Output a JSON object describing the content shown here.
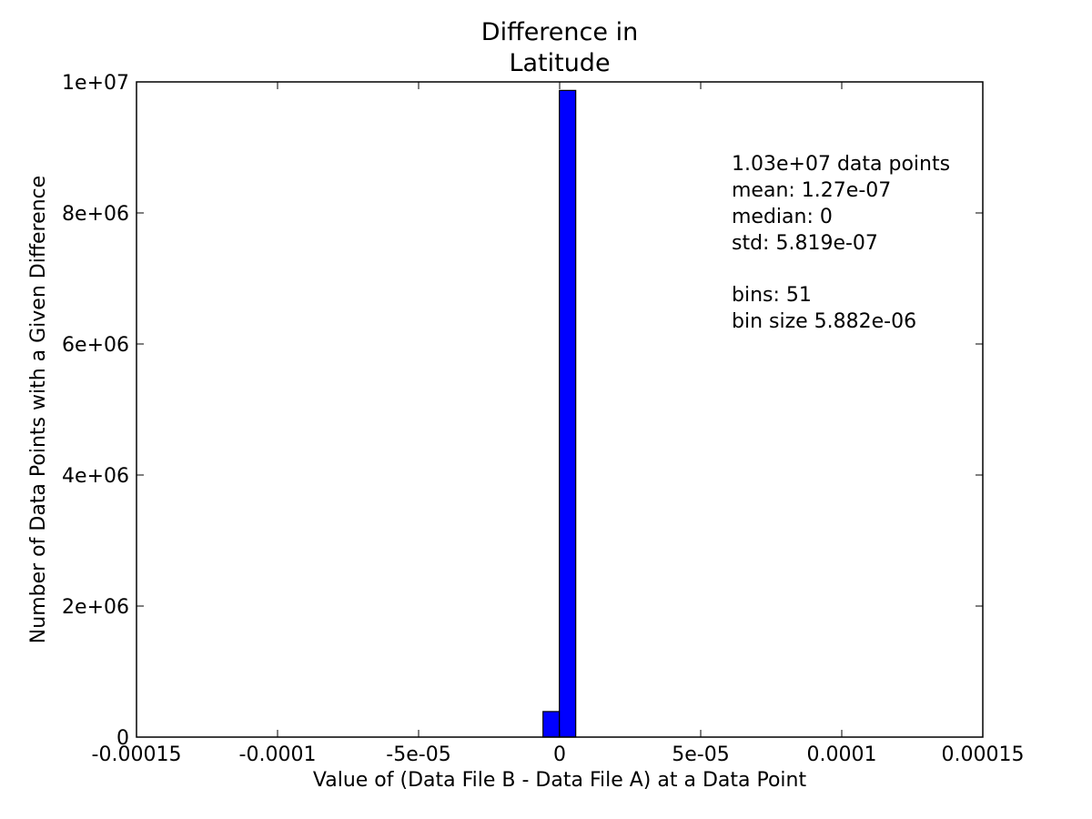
{
  "chart_data": {
    "type": "bar",
    "title": [
      "Difference in",
      "Latitude"
    ],
    "xlabel": "Value of (Data File B - Data File A) at a Data Point",
    "ylabel": "Number of Data Points with a Given Difference",
    "xlim": [
      -0.00015,
      0.00015
    ],
    "ylim": [
      0,
      10000000
    ],
    "x_ticks": [
      {
        "value": -0.00015,
        "label": "-0.00015"
      },
      {
        "value": -0.0001,
        "label": "-0.0001"
      },
      {
        "value": -5e-05,
        "label": "-5e-05"
      },
      {
        "value": 0,
        "label": "0"
      },
      {
        "value": 5e-05,
        "label": "5e-05"
      },
      {
        "value": 0.0001,
        "label": "0.0001"
      },
      {
        "value": 0.00015,
        "label": "0.00015"
      }
    ],
    "y_ticks": [
      {
        "value": 0,
        "label": "0"
      },
      {
        "value": 2000000,
        "label": "2e+06"
      },
      {
        "value": 4000000,
        "label": "4e+06"
      },
      {
        "value": 6000000,
        "label": "6e+06"
      },
      {
        "value": 8000000,
        "label": "8e+06"
      },
      {
        "value": 10000000,
        "label": "1e+07"
      }
    ],
    "bins": [
      {
        "x0": -0.00013,
        "x1": -5.9e-06,
        "value": 0
      },
      {
        "x0": -5.9e-06,
        "x1": -1e-07,
        "value": 390000
      },
      {
        "x0": -1e-07,
        "x1": 5.7e-06,
        "value": 9870000
      },
      {
        "x0": 5.7e-06,
        "x1": 0.00013,
        "value": 0
      }
    ],
    "bar_color": "#0000ff",
    "edge_color": "#000000",
    "grid": false,
    "annotation": [
      "1.03e+07 data points",
      "mean: 1.27e-07",
      "median: 0",
      "std: 5.819e-07",
      "",
      "bins: 51",
      "bin size 5.882e-06"
    ]
  }
}
